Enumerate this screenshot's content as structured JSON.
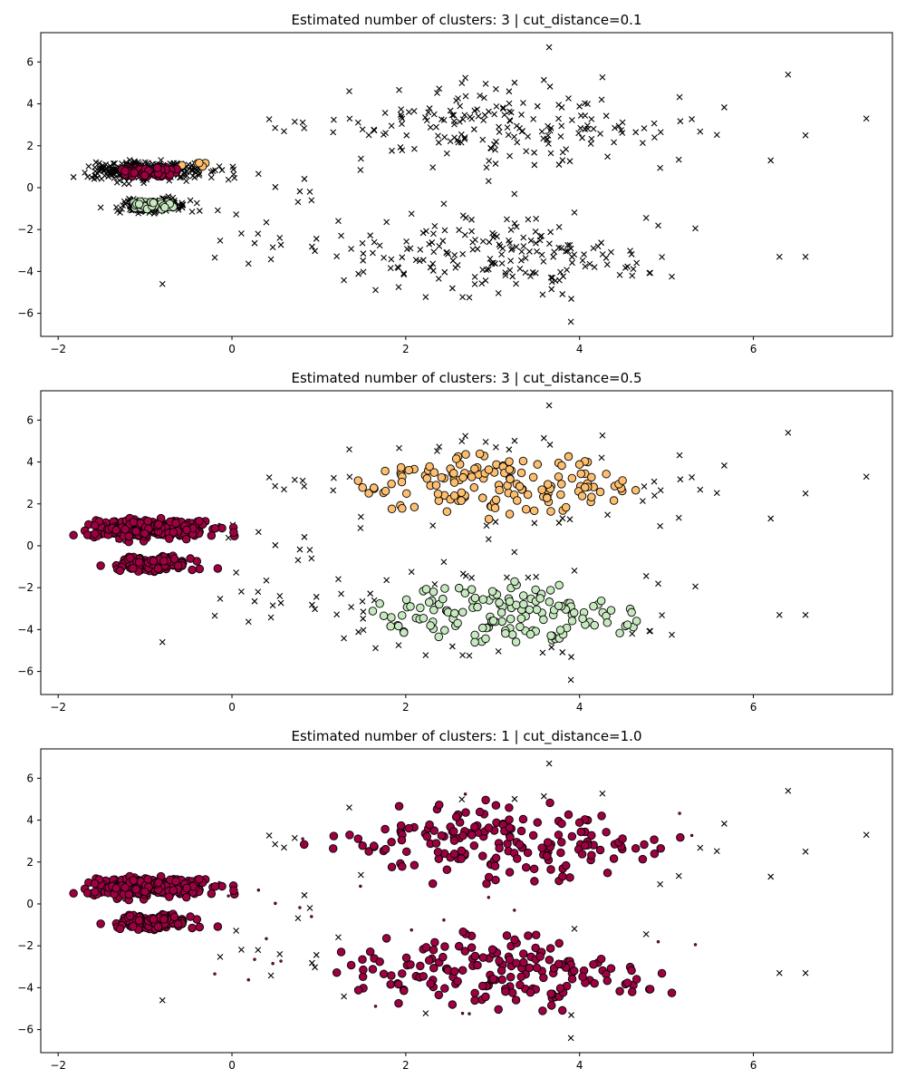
{
  "chart_data": [
    {
      "type": "scatter",
      "title": "Estimated number of clusters: 3 | cut_distance=0.1",
      "xlim": [
        -2.2,
        7.6
      ],
      "ylim": [
        -7.1,
        7.4
      ],
      "xticks": [
        -2,
        0,
        2,
        4,
        6
      ],
      "yticks": [
        -6,
        -4,
        -2,
        0,
        2,
        4,
        6
      ],
      "legend": "none",
      "clusters": [
        {
          "color": "#9e0142",
          "region": "left-top blob",
          "center": [
            -0.95,
            0.75
          ],
          "spread": [
            0.25,
            0.2
          ],
          "core_points": 120
        },
        {
          "color": "#fdbf6f",
          "region": "left-top blob, right edge",
          "center": [
            -0.55,
            1.2
          ],
          "spread": [
            0.08,
            0.12
          ],
          "core_points": 8
        },
        {
          "color": "#c7e9c0",
          "region": "left-bottom blob",
          "center": [
            -0.9,
            -0.85
          ],
          "spread": [
            0.2,
            0.15
          ],
          "core_points": 60
        }
      ],
      "noise_regions": "all remaining points plotted as black x markers"
    },
    {
      "type": "scatter",
      "title": "Estimated number of clusters: 3 | cut_distance=0.5",
      "xlim": [
        -2.2,
        7.6
      ],
      "ylim": [
        -7.1,
        7.4
      ],
      "xticks": [
        -2,
        0,
        2,
        4,
        6
      ],
      "yticks": [
        -6,
        -4,
        -2,
        0,
        2,
        4,
        6
      ],
      "legend": "none",
      "clusters": [
        {
          "color": "#9e0142",
          "region": "left blobs (top and bottom)",
          "center": [
            -0.95,
            0.3
          ],
          "spread": [
            0.35,
            0.8
          ],
          "core_points": 420
        },
        {
          "color": "#fdbf6f",
          "region": "upper right cloud",
          "center": [
            3.0,
            2.9
          ],
          "spread": [
            0.9,
            0.9
          ],
          "core_points": 150
        },
        {
          "color": "#c7e9c0",
          "region": "lower right cloud",
          "center": [
            3.2,
            -3.3
          ],
          "spread": [
            0.9,
            0.8
          ],
          "core_points": 150
        }
      ],
      "noise_regions": "outlying points plotted as black x markers"
    },
    {
      "type": "scatter",
      "title": "Estimated number of clusters: 1 | cut_distance=1.0",
      "xlim": [
        -2.2,
        7.6
      ],
      "ylim": [
        -7.1,
        7.4
      ],
      "xticks": [
        -2,
        0,
        2,
        4,
        6
      ],
      "yticks": [
        -6,
        -4,
        -2,
        0,
        2,
        4,
        6
      ],
      "legend": "none",
      "clusters": [
        {
          "color": "#9e0142",
          "region": "all dense areas",
          "center": [
            1.5,
            0.0
          ],
          "spread": [
            1.5,
            3.0
          ],
          "core_points": 720
        }
      ],
      "noise_regions": "few outlying points plotted as black x markers"
    }
  ]
}
